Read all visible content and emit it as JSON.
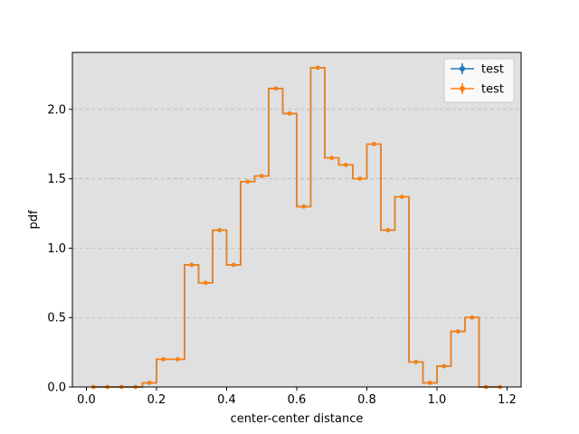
{
  "chart_data": {
    "type": "line",
    "title": "",
    "xlabel": "center-center distance",
    "ylabel": "pdf",
    "xlim": [
      -0.04,
      1.24
    ],
    "ylim": [
      0.0,
      2.41
    ],
    "xticks": [
      0.0,
      0.2,
      0.4,
      0.6,
      0.8,
      1.0,
      1.2
    ],
    "xtick_labels": [
      "0.0",
      "0.2",
      "0.4",
      "0.6",
      "0.8",
      "1.0",
      "1.2"
    ],
    "yticks": [
      0.0,
      0.5,
      1.0,
      1.5,
      2.0
    ],
    "ytick_labels": [
      "0.0",
      "0.5",
      "1.0",
      "1.5",
      "2.0"
    ],
    "grid": "y-dashed",
    "legend_position": "top-right",
    "background": "#e0e0e0",
    "bin_width": 0.04,
    "series": [
      {
        "name": "test",
        "color": "#1f77b4",
        "drawstyle": "steps-mid",
        "x": [
          0.02,
          0.06,
          0.1,
          0.14,
          0.18,
          0.22,
          0.26,
          0.3,
          0.34,
          0.38,
          0.42,
          0.46,
          0.5,
          0.54,
          0.58,
          0.62,
          0.66,
          0.7,
          0.74,
          0.78,
          0.82,
          0.86,
          0.9,
          0.94,
          0.98,
          1.02,
          1.06,
          1.1,
          1.14,
          1.18
        ],
        "y": [
          0.0,
          0.0,
          0.0,
          0.0,
          0.03,
          0.2,
          0.2,
          0.88,
          0.75,
          1.13,
          0.88,
          1.48,
          1.52,
          2.15,
          1.97,
          1.3,
          2.3,
          1.65,
          1.6,
          1.5,
          1.75,
          1.13,
          1.37,
          0.18,
          0.03,
          0.15,
          0.4,
          0.5,
          0.0,
          0.0
        ]
      },
      {
        "name": "test",
        "color": "#ff7f0e",
        "drawstyle": "steps-mid",
        "x": [
          0.02,
          0.06,
          0.1,
          0.14,
          0.18,
          0.22,
          0.26,
          0.3,
          0.34,
          0.38,
          0.42,
          0.46,
          0.5,
          0.54,
          0.58,
          0.62,
          0.66,
          0.7,
          0.74,
          0.78,
          0.82,
          0.86,
          0.9,
          0.94,
          0.98,
          1.02,
          1.06,
          1.1,
          1.14,
          1.18
        ],
        "y": [
          0.0,
          0.0,
          0.0,
          0.0,
          0.03,
          0.2,
          0.2,
          0.88,
          0.75,
          1.13,
          0.88,
          1.48,
          1.52,
          2.15,
          1.97,
          1.3,
          2.3,
          1.65,
          1.6,
          1.5,
          1.75,
          1.13,
          1.37,
          0.18,
          0.03,
          0.15,
          0.4,
          0.5,
          0.0,
          0.0
        ]
      }
    ]
  }
}
